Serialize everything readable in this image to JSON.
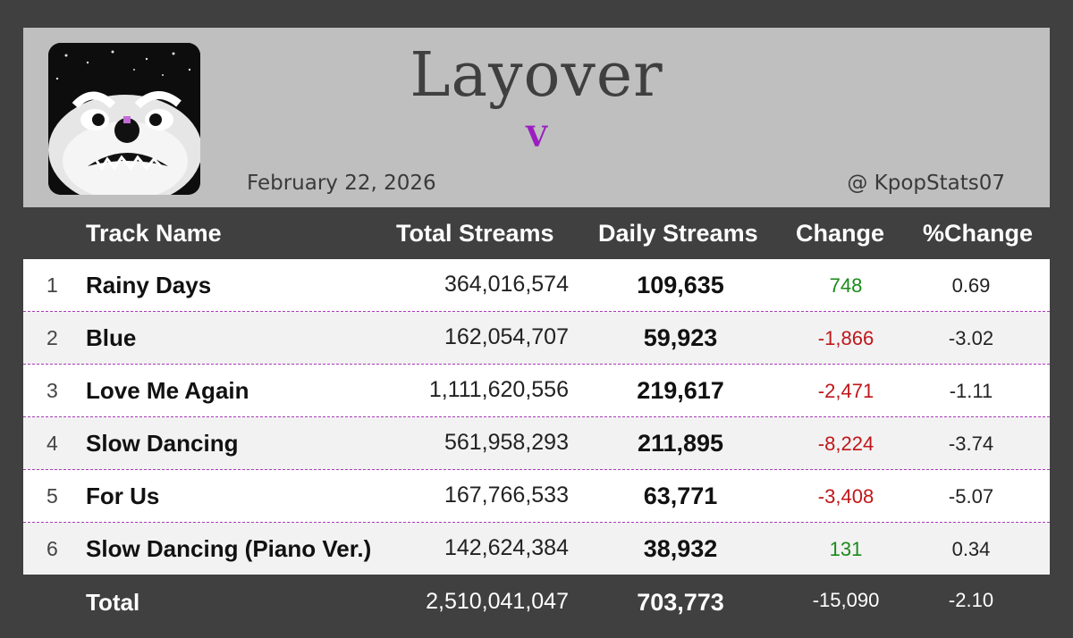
{
  "album": {
    "title": "Layover",
    "artist": "V"
  },
  "meta": {
    "date": "February 22, 2026",
    "handle": "@ KpopStats07"
  },
  "columns": {
    "track": "Track Name",
    "total": "Total Streams",
    "daily": "Daily Streams",
    "change": "Change",
    "pct": "%Change"
  },
  "tracks": [
    {
      "rank": "1",
      "name": "Rainy Days",
      "total": "364,016,574",
      "daily": "109,635",
      "change": "748",
      "pct": "0.69"
    },
    {
      "rank": "2",
      "name": "Blue",
      "total": "162,054,707",
      "daily": "59,923",
      "change": "-1,866",
      "pct": "-3.02"
    },
    {
      "rank": "3",
      "name": "Love Me Again",
      "total": "1,111,620,556",
      "daily": "219,617",
      "change": "-2,471",
      "pct": "-1.11"
    },
    {
      "rank": "4",
      "name": "Slow Dancing",
      "total": "561,958,293",
      "daily": "211,895",
      "change": "-8,224",
      "pct": "-3.74"
    },
    {
      "rank": "5",
      "name": "For Us",
      "total": "167,766,533",
      "daily": "63,771",
      "change": "-3,408",
      "pct": "-5.07"
    },
    {
      "rank": "6",
      "name": "Slow Dancing (Piano Ver.)",
      "total": "142,624,384",
      "daily": "38,932",
      "change": "131",
      "pct": "0.34"
    }
  ],
  "totals": {
    "label": "Total",
    "total": "2,510,041,047",
    "daily": "703,773",
    "change": "-15,090",
    "pct": "-2.10"
  },
  "colors": {
    "background": "#404040",
    "header_panel": "#bfbfbf",
    "artist": "#9b1fc0",
    "positive": "#1a8a1a",
    "negative": "#c0171a",
    "divider": "#a83ab8"
  }
}
